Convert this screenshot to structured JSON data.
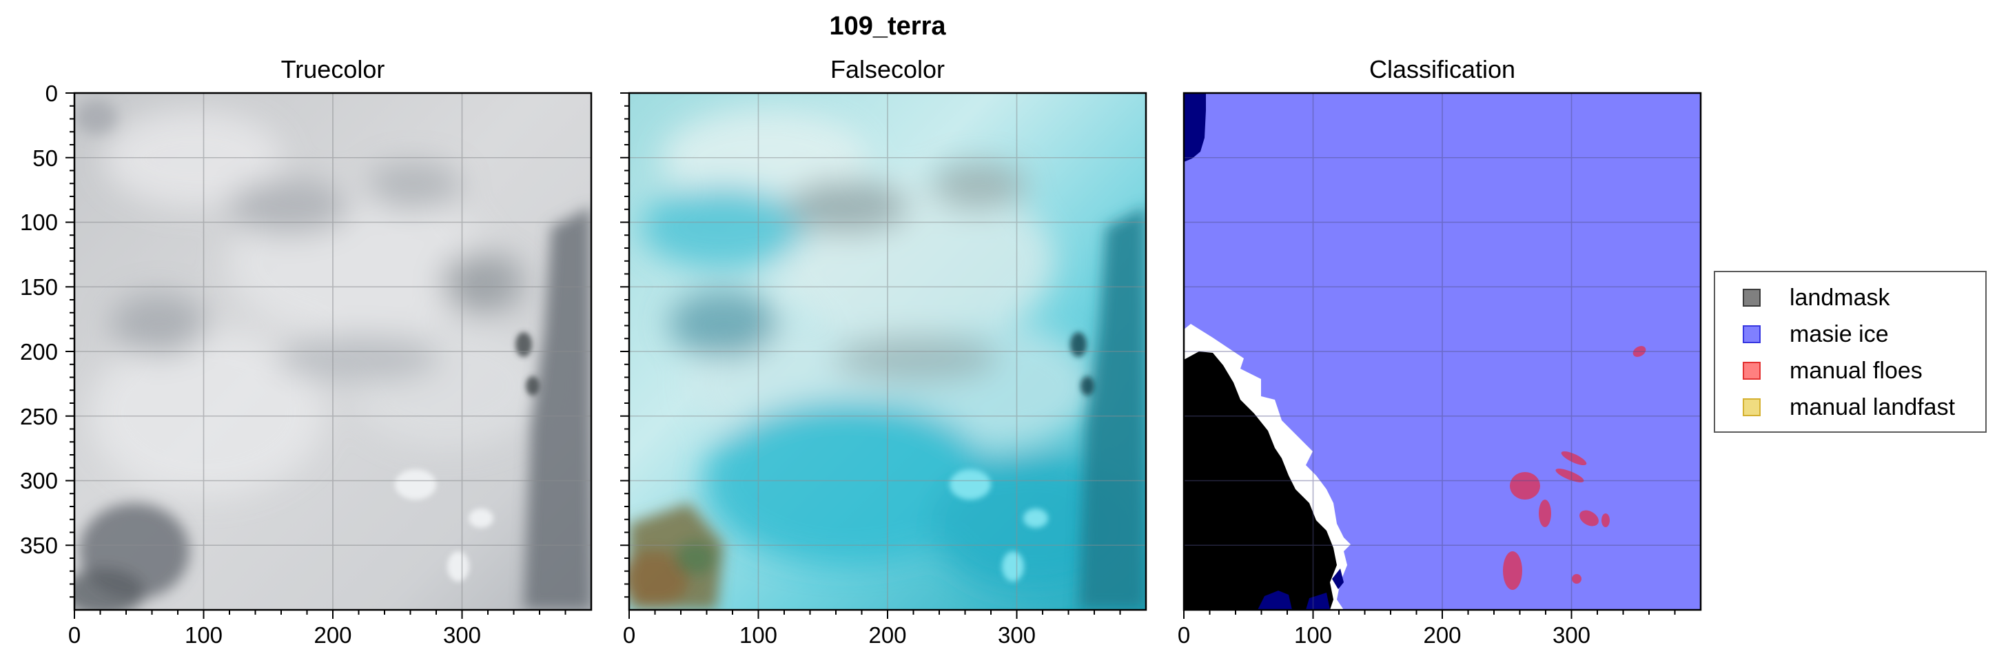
{
  "figure": {
    "title": "109_terra"
  },
  "chart_data": [
    {
      "type": "heatmap",
      "title": "Truecolor",
      "xticks": [
        0,
        100,
        200,
        300
      ],
      "yticks": [
        0,
        50,
        100,
        150,
        200,
        250,
        300,
        350
      ],
      "xlim": [
        0,
        400
      ],
      "ylim": [
        400,
        0
      ],
      "grid": true,
      "image": "grey-white cloud-covered sea ice scene"
    },
    {
      "type": "heatmap",
      "title": "Falsecolor",
      "xticks": [
        0,
        100,
        200,
        300
      ],
      "yticks": [],
      "xlim": [
        0,
        400
      ],
      "ylim": [
        400,
        0
      ],
      "grid": true,
      "image": "cyan false-color sea ice scene with brown land at lower left"
    },
    {
      "type": "heatmap",
      "title": "Classification",
      "xticks": [
        0,
        100,
        200,
        300
      ],
      "yticks": [],
      "xlim": [
        0,
        400
      ],
      "ylim": [
        400,
        0
      ],
      "grid": true,
      "legend": {
        "placement": "right",
        "items": [
          {
            "label": "landmask",
            "color": "#808080",
            "edge": "#3a3a3a"
          },
          {
            "label": "masie ice",
            "color": "#8080ff",
            "edge": "#3636e0"
          },
          {
            "label": "manual floes",
            "color": "#ff8080",
            "edge": "#e23030"
          },
          {
            "label": "manual landfast",
            "color": "#f0dc80",
            "edge": "#d4b030"
          }
        ]
      },
      "colors": {
        "masie_ice": "#8080ff",
        "land": "#000000",
        "dark_ice": "#000080",
        "floes": "#c9437a",
        "clear": "#ffffff"
      }
    }
  ]
}
